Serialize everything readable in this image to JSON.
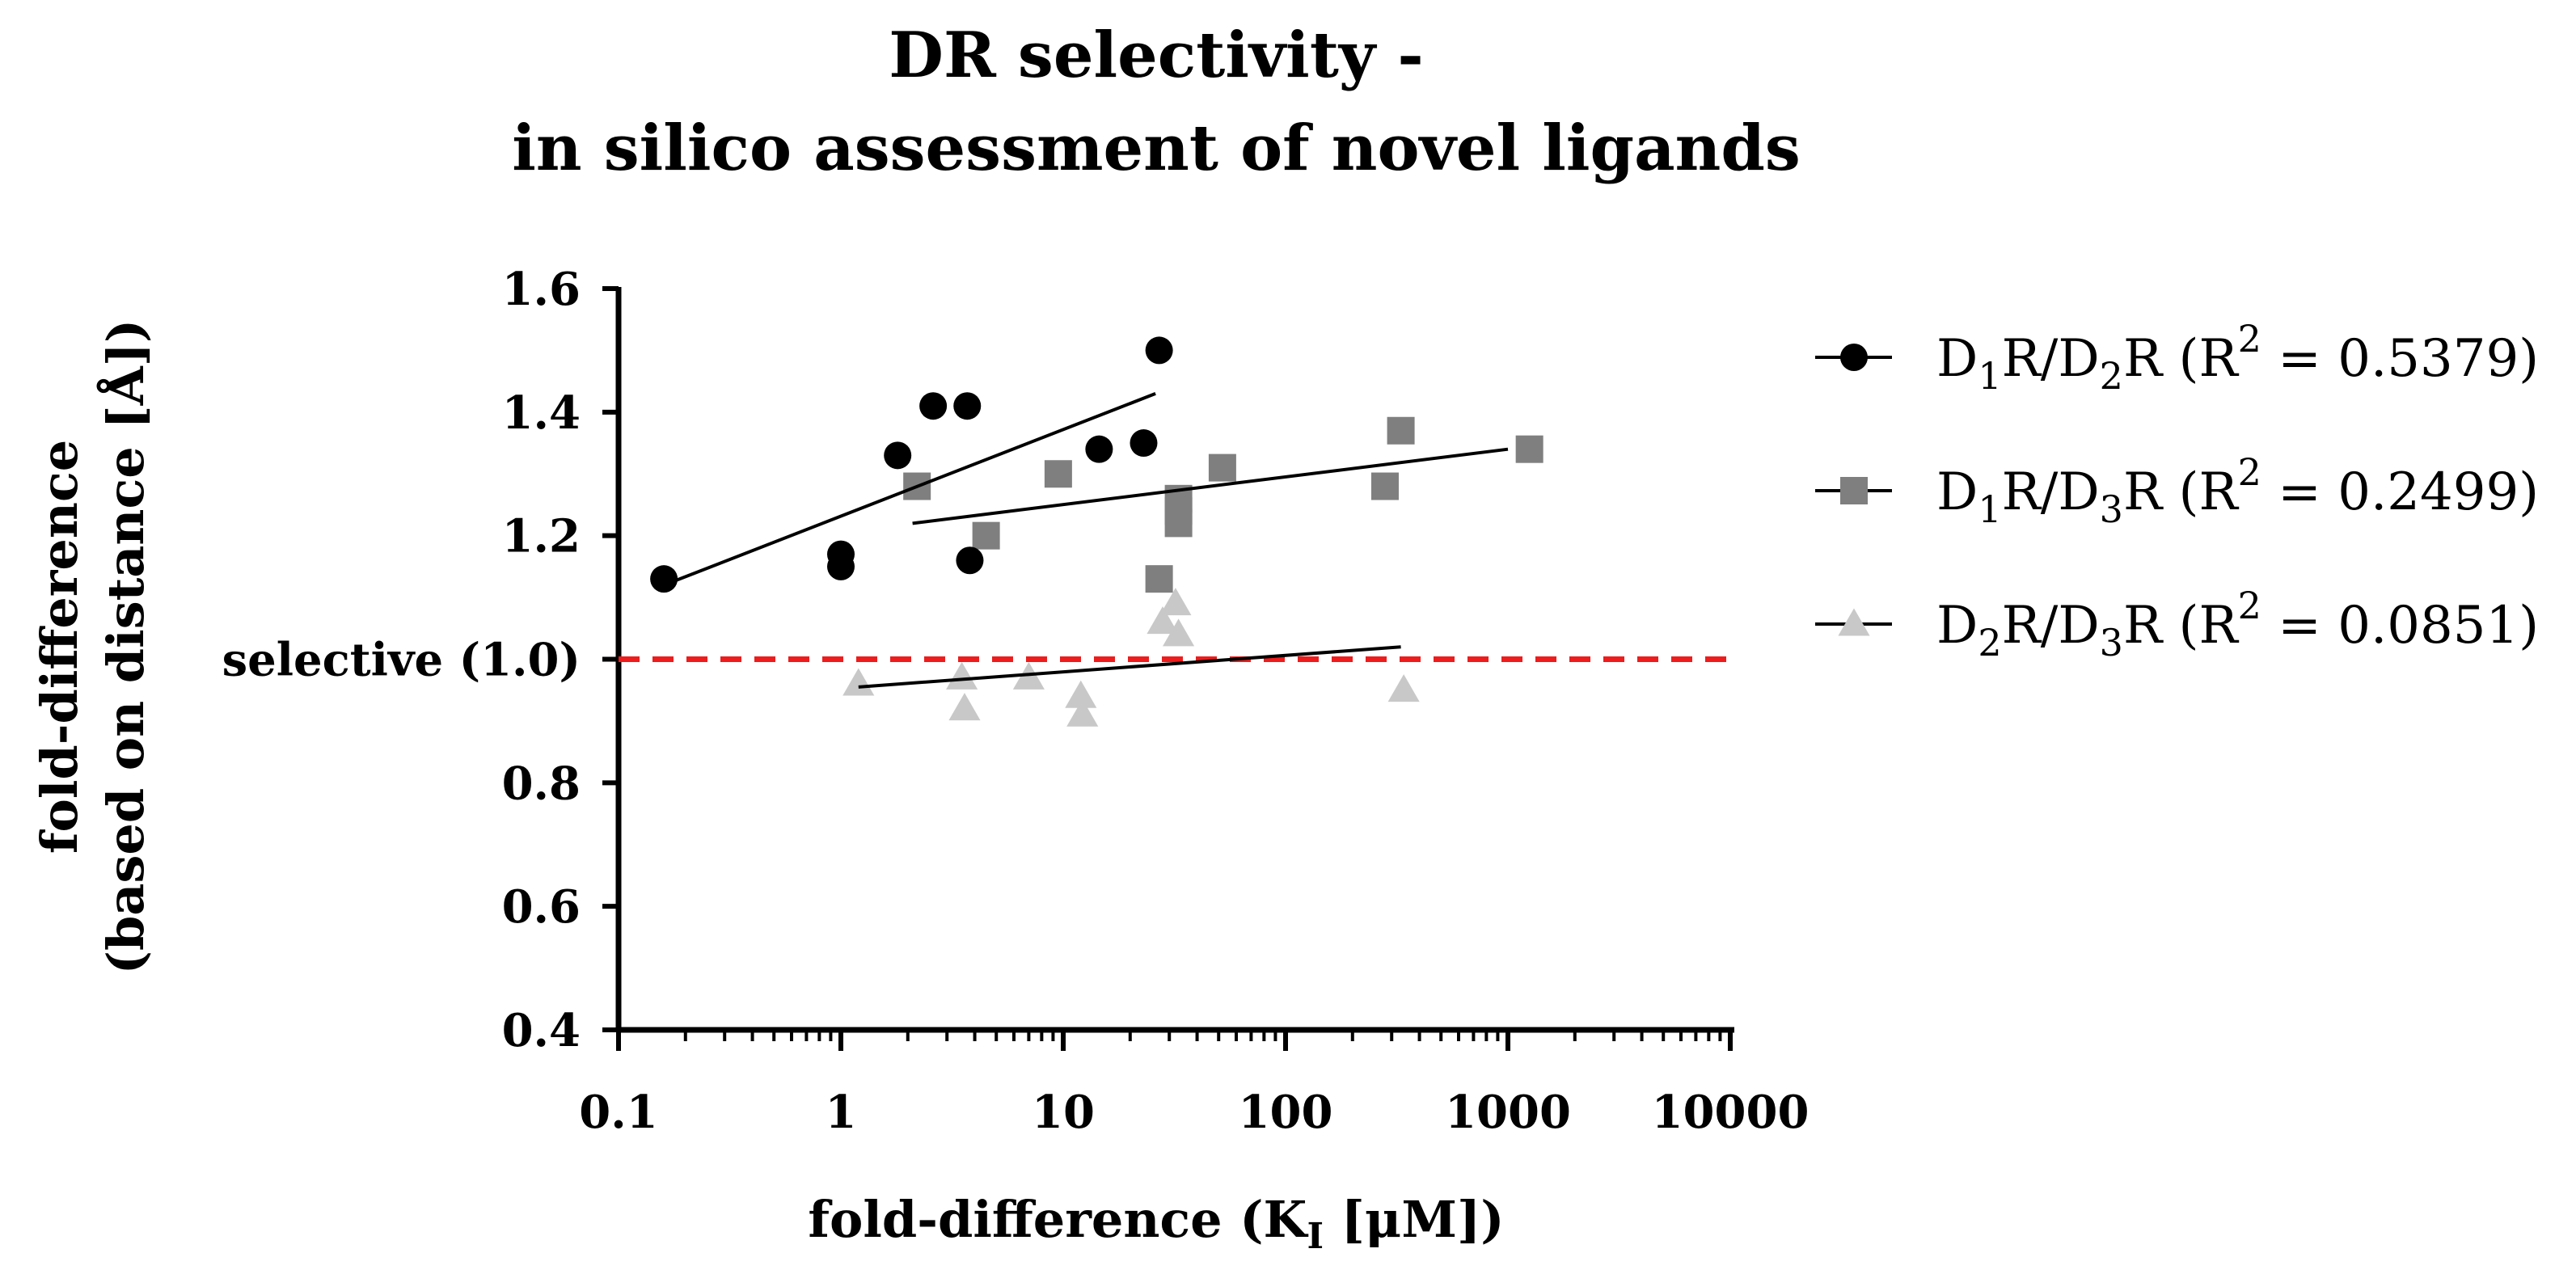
{
  "chart_data": {
    "type": "scatter",
    "title": [
      "DR selectivity -",
      "in silico assessment of novel ligands"
    ],
    "xlabel": "fold-difference (K",
    "xlabel_sub": "I",
    "xlabel_tail": " [μM])",
    "ylabel": [
      "fold-difference",
      "(based on distance [Å])"
    ],
    "x_scale": "log",
    "xlim": [
      0.1,
      10000
    ],
    "ylim": [
      0.4,
      1.6
    ],
    "xticks": [
      0.1,
      1,
      10,
      100,
      1000,
      10000
    ],
    "xtick_labels": [
      "0.1",
      "1",
      "10",
      "100",
      "1000",
      "10000"
    ],
    "yticks": [
      0.4,
      0.6,
      0.8,
      1.0,
      1.2,
      1.4,
      1.6
    ],
    "ytick_labels": [
      "0.4",
      "0.6",
      "0.8",
      "1.0",
      "1.2",
      "1.4",
      "1.6"
    ],
    "reference_line": {
      "y": 1.0,
      "label": "selective (1.0)",
      "color": "#ee1c1c"
    },
    "legend_position": "right",
    "series": [
      {
        "name": "D1R/D2R",
        "legend_parts": [
          "D",
          "1",
          "R/D",
          "2",
          "R (R",
          "2",
          " = 0.5379)"
        ],
        "marker": "circle",
        "color": "#000000",
        "points": [
          [
            0.16,
            1.13
          ],
          [
            1.0,
            1.17
          ],
          [
            1.0,
            1.15
          ],
          [
            1.8,
            1.33
          ],
          [
            2.6,
            1.41
          ],
          [
            3.7,
            1.41
          ],
          [
            3.8,
            1.16
          ],
          [
            14.5,
            1.34
          ],
          [
            23,
            1.35
          ],
          [
            27,
            1.5
          ]
        ],
        "fit": [
          [
            0.16,
            1.12
          ],
          [
            26,
            1.43
          ]
        ]
      },
      {
        "name": "D1R/D3R",
        "legend_parts": [
          "D",
          "1",
          "R/D",
          "3",
          "R (R",
          "2",
          " = 0.2499)"
        ],
        "marker": "square",
        "color": "#7f7f7f",
        "points": [
          [
            2.2,
            1.28
          ],
          [
            4.5,
            1.2
          ],
          [
            9.5,
            1.3
          ],
          [
            27,
            1.13
          ],
          [
            33,
            1.26
          ],
          [
            33,
            1.24
          ],
          [
            33,
            1.22
          ],
          [
            52,
            1.31
          ],
          [
            280,
            1.28
          ],
          [
            330,
            1.37
          ],
          [
            1250,
            1.34
          ]
        ],
        "fit": [
          [
            2.1,
            1.22
          ],
          [
            1000,
            1.34
          ]
        ]
      },
      {
        "name": "D2R/D3R",
        "legend_parts": [
          "D",
          "2",
          "R/D",
          "3",
          "R (R",
          "2",
          " = 0.0851)"
        ],
        "marker": "triangle",
        "color": "#c8c8c8",
        "points": [
          [
            1.2,
            0.96
          ],
          [
            3.5,
            0.97
          ],
          [
            3.6,
            0.92
          ],
          [
            7,
            0.97
          ],
          [
            12,
            0.94
          ],
          [
            12.2,
            0.91
          ],
          [
            28,
            1.06
          ],
          [
            32,
            1.09
          ],
          [
            33,
            1.04
          ],
          [
            340,
            0.95
          ]
        ],
        "fit": [
          [
            1.2,
            0.955
          ],
          [
            330,
            1.02
          ]
        ]
      }
    ]
  }
}
